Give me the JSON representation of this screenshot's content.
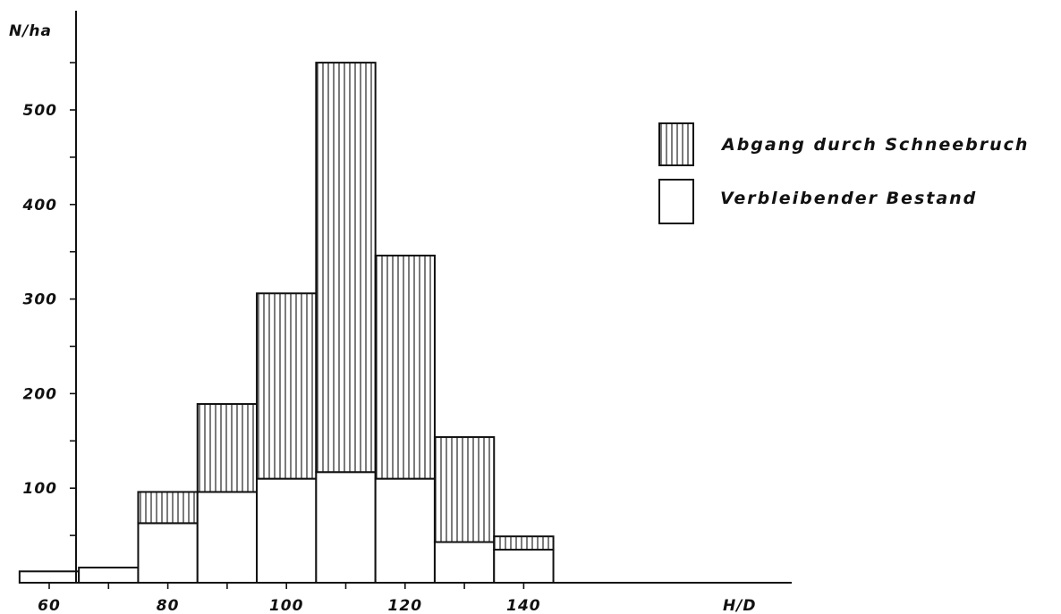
{
  "chart_data": {
    "type": "bar",
    "stacked": true,
    "x_tick_labels": [
      "60",
      "80",
      "100",
      "120",
      "140"
    ],
    "x_ticks": [
      60,
      80,
      100,
      120,
      140
    ],
    "xlabel": "H/D",
    "ylabel": "N/ha",
    "y_tick_labels": [
      "100",
      "200",
      "300",
      "400",
      "500"
    ],
    "y_ticks": [
      100,
      200,
      300,
      400,
      500
    ],
    "ylim": [
      0,
      600
    ],
    "xlim": [
      40,
      160
    ],
    "bin_width": 10,
    "bins": [
      60,
      70,
      80,
      90,
      100,
      110,
      120,
      130,
      140
    ],
    "series": [
      {
        "name": "Verbleibender Bestand",
        "pattern": "plain",
        "values": [
          12,
          16,
          63,
          96,
          110,
          117,
          110,
          43,
          35
        ]
      },
      {
        "name": "Abgang durch Schneebruch",
        "pattern": "vertical-hatch",
        "values": [
          0,
          0,
          33,
          93,
          196,
          433,
          236,
          111,
          14
        ]
      }
    ],
    "legend": {
      "placement": "right"
    },
    "grid": false
  }
}
